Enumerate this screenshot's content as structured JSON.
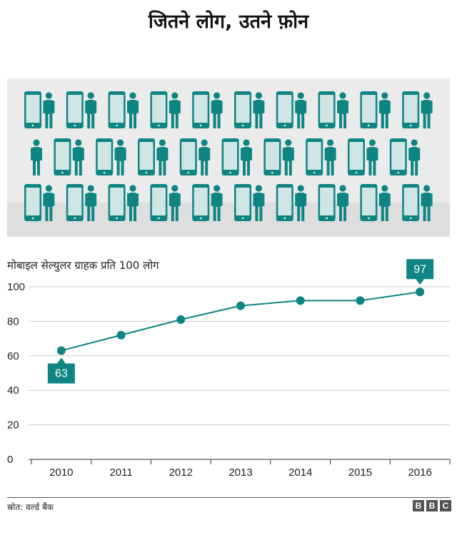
{
  "title": "जितने लोग, उतने फ़ोन",
  "colors": {
    "accent": "#0e8582",
    "screen": "#cfe6e5",
    "illustration_bg": "#ebebeb",
    "grid": "#cccccc"
  },
  "illustration": {
    "rows": [
      [
        "phone",
        "person",
        "phone",
        "person",
        "phone",
        "person",
        "phone",
        "person",
        "phone",
        "person",
        "phone",
        "person",
        "phone",
        "person",
        "phone",
        "person",
        "phone",
        "person",
        "phone",
        "person"
      ],
      [
        "person",
        "phone",
        "person",
        "phone",
        "person",
        "phone",
        "person",
        "phone",
        "person",
        "phone",
        "person",
        "phone",
        "person",
        "phone",
        "person",
        "phone",
        "person",
        "phone",
        "person"
      ],
      [
        "phone",
        "person",
        "phone",
        "person",
        "phone",
        "person",
        "phone",
        "person",
        "phone",
        "person",
        "phone",
        "person",
        "phone",
        "person",
        "phone",
        "person",
        "phone",
        "person",
        "phone",
        "person"
      ]
    ]
  },
  "chart_data": {
    "type": "line",
    "title": "मोबाइल सेल्युलर ग्राहक प्रति 100 लोग",
    "categories": [
      "2010",
      "2011",
      "2012",
      "2013",
      "2014",
      "2015",
      "2016"
    ],
    "values": [
      63,
      72,
      81,
      89,
      92,
      92,
      97
    ],
    "yticks": [
      0,
      20,
      40,
      60,
      80,
      100
    ],
    "ylim": [
      0,
      100
    ],
    "grid": true,
    "callouts": [
      {
        "index": 0,
        "label": "63",
        "position": "below"
      },
      {
        "index": 6,
        "label": "97",
        "position": "above"
      }
    ]
  },
  "source": "स्रोत: वर्ल्ड बैंक",
  "logo": [
    "B",
    "B",
    "C"
  ]
}
